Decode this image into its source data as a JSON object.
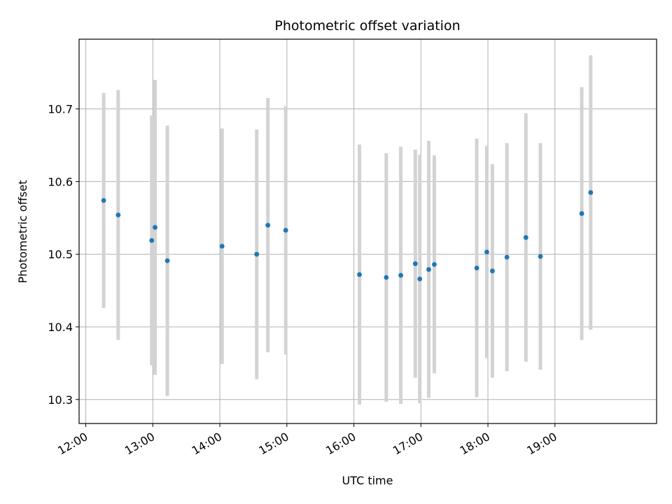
{
  "chart_data": {
    "type": "scatter",
    "title": "Photometric offset variation",
    "xlabel": "UTC time",
    "ylabel": "Photometric offset",
    "x_tick_labels": [
      "12:00",
      "13:00",
      "14:00",
      "15:00",
      "16:00",
      "17:00",
      "18:00",
      "19:00"
    ],
    "y_tick_labels": [
      "10.3",
      "10.4",
      "10.5",
      "10.6",
      "10.7"
    ],
    "y_ticks": [
      10.3,
      10.4,
      10.5,
      10.6,
      10.7
    ],
    "xlim": [
      "11:54",
      "20:31"
    ],
    "ylim": [
      10.267,
      10.796
    ],
    "grid": true,
    "colors": {
      "point": "#1f77b4",
      "errorbar": "#d3d3d3",
      "grid": "#b0b0b0"
    },
    "series": [
      {
        "points": [
          {
            "x": "12:16",
            "y": 10.574,
            "err": 0.148
          },
          {
            "x": "12:29",
            "y": 10.554,
            "err": 0.172
          },
          {
            "x": "12:59",
            "y": 10.519,
            "err": 0.172
          },
          {
            "x": "13:02",
            "y": 10.537,
            "err": 0.203
          },
          {
            "x": "13:13",
            "y": 10.491,
            "err": 0.186
          },
          {
            "x": "14:02",
            "y": 10.511,
            "err": 0.162
          },
          {
            "x": "14:33",
            "y": 10.5,
            "err": 0.172
          },
          {
            "x": "14:43",
            "y": 10.54,
            "err": 0.175
          },
          {
            "x": "14:59",
            "y": 10.533,
            "err": 0.171
          },
          {
            "x": "16:05",
            "y": 10.472,
            "err": 0.179
          },
          {
            "x": "16:29",
            "y": 10.468,
            "err": 0.171
          },
          {
            "x": "16:42",
            "y": 10.471,
            "err": 0.177
          },
          {
            "x": "16:55",
            "y": 10.487,
            "err": 0.157
          },
          {
            "x": "16:59",
            "y": 10.466,
            "err": 0.171
          },
          {
            "x": "17:07",
            "y": 10.479,
            "err": 0.177
          },
          {
            "x": "17:12",
            "y": 10.486,
            "err": 0.15
          },
          {
            "x": "17:50",
            "y": 10.481,
            "err": 0.178
          },
          {
            "x": "17:59",
            "y": 10.503,
            "err": 0.146
          },
          {
            "x": "18:04",
            "y": 10.477,
            "err": 0.147
          },
          {
            "x": "18:17",
            "y": 10.496,
            "err": 0.157
          },
          {
            "x": "18:34",
            "y": 10.523,
            "err": 0.171
          },
          {
            "x": "18:47",
            "y": 10.497,
            "err": 0.156
          },
          {
            "x": "19:24",
            "y": 10.556,
            "err": 0.174
          },
          {
            "x": "19:32",
            "y": 10.585,
            "err": 0.189
          }
        ]
      }
    ]
  }
}
